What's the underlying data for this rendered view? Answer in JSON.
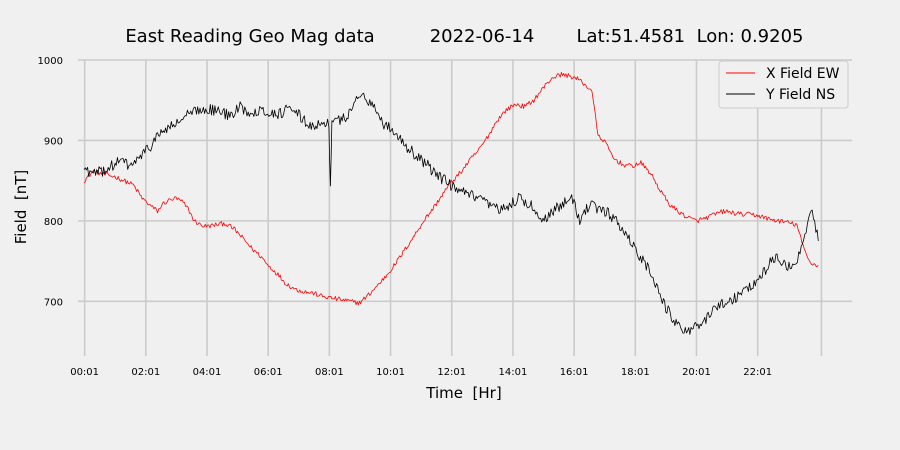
{
  "chart_data": {
    "type": "line",
    "title_parts": [
      "East Reading Geo Mag data",
      "2022-06-14",
      "Lat:51.4581  Lon: 0.9205"
    ],
    "xlabel": "Time  [Hr]",
    "ylabel": "Field  [nT]",
    "x_unit": "hours",
    "xlim": [
      -0.2,
      25.1
    ],
    "ylim": [
      632,
      1000
    ],
    "x_ticks": [
      {
        "x": 0.0167,
        "label": "00:01"
      },
      {
        "x": 2.0167,
        "label": "02:01"
      },
      {
        "x": 4.0167,
        "label": "04:01"
      },
      {
        "x": 6.0167,
        "label": "06:01"
      },
      {
        "x": 8.0167,
        "label": "08:01"
      },
      {
        "x": 10.0167,
        "label": "10:01"
      },
      {
        "x": 12.0167,
        "label": "12:01"
      },
      {
        "x": 14.0167,
        "label": "14:01"
      },
      {
        "x": 16.0167,
        "label": "16:01"
      },
      {
        "x": 18.0167,
        "label": "18:01"
      },
      {
        "x": 20.0167,
        "label": "20:01"
      },
      {
        "x": 22.0167,
        "label": "22:01"
      }
    ],
    "x_extra_gridline": 24.1,
    "y_ticks": [
      700,
      800,
      900,
      1000
    ],
    "grid": true,
    "legend_position": "top-right",
    "series": [
      {
        "name": "X Field EW",
        "color": "#ff0000",
        "noise": 3,
        "x": [
          0,
          0.3,
          0.6,
          1.0,
          1.3,
          1.6,
          1.9,
          2.2,
          2.4,
          2.6,
          2.8,
          3.0,
          3.2,
          3.4,
          3.6,
          3.8,
          4.0,
          4.3,
          4.6,
          4.9,
          5.2,
          5.5,
          5.8,
          6.0,
          6.3,
          6.6,
          6.9,
          7.2,
          7.5,
          7.8,
          8.1,
          8.4,
          8.7,
          9.0,
          9.3,
          9.6,
          9.9,
          10.2,
          10.5,
          10.8,
          11.1,
          11.4,
          11.7,
          12.0,
          12.3,
          12.6,
          12.9,
          13.2,
          13.5,
          13.8,
          14.1,
          14.4,
          14.7,
          15.0,
          15.3,
          15.6,
          15.9,
          16.2,
          16.4,
          16.6,
          16.8,
          17.0,
          17.3,
          17.6,
          17.9,
          18.2,
          18.5,
          18.8,
          19.1,
          19.4,
          19.7,
          20.0,
          20.3,
          20.6,
          20.9,
          21.2,
          21.5,
          21.8,
          22.1,
          22.4,
          22.7,
          23.0,
          23.3,
          23.5,
          23.7,
          23.9,
          24.0
        ],
        "y": [
          850,
          862,
          858,
          855,
          850,
          845,
          828,
          818,
          812,
          822,
          826,
          828,
          824,
          815,
          800,
          795,
          793,
          795,
          797,
          790,
          778,
          765,
          755,
          745,
          735,
          722,
          715,
          712,
          710,
          706,
          704,
          702,
          700,
          698,
          708,
          720,
          733,
          748,
          765,
          782,
          800,
          815,
          832,
          848,
          860,
          875,
          888,
          905,
          925,
          938,
          945,
          942,
          950,
          965,
          978,
          982,
          980,
          975,
          968,
          962,
          905,
          900,
          878,
          870,
          868,
          872,
          860,
          840,
          822,
          812,
          805,
          800,
          803,
          808,
          812,
          810,
          808,
          808,
          806,
          802,
          800,
          798,
          795,
          768,
          750,
          745,
          745
        ]
      },
      {
        "name": "Y Field NS",
        "color": "#000000",
        "noise": 7,
        "x": [
          0,
          0.3,
          0.6,
          0.9,
          1.2,
          1.5,
          1.8,
          2.1,
          2.4,
          2.7,
          3.0,
          3.3,
          3.6,
          3.9,
          4.2,
          4.5,
          4.8,
          5.1,
          5.4,
          5.7,
          6.0,
          6.3,
          6.6,
          6.9,
          7.2,
          7.5,
          7.8,
          8.0,
          8.05,
          8.1,
          8.4,
          8.7,
          8.9,
          9.1,
          9.3,
          9.6,
          9.8,
          10.0,
          10.3,
          10.6,
          10.9,
          11.2,
          11.5,
          11.8,
          12.1,
          12.4,
          12.7,
          13.0,
          13.3,
          13.6,
          13.9,
          14.2,
          14.5,
          14.8,
          15.0,
          15.3,
          15.6,
          15.9,
          16.2,
          16.5,
          16.8,
          17.1,
          17.4,
          17.7,
          18.0,
          18.3,
          18.6,
          18.9,
          19.2,
          19.5,
          19.8,
          20.1,
          20.4,
          20.7,
          21.0,
          21.3,
          21.6,
          21.9,
          22.2,
          22.5,
          22.8,
          23.0,
          23.2,
          23.4,
          23.6,
          23.8,
          24.0
        ],
        "y": [
          865,
          858,
          862,
          868,
          875,
          868,
          878,
          890,
          905,
          915,
          920,
          930,
          935,
          940,
          938,
          935,
          930,
          942,
          935,
          938,
          935,
          932,
          938,
          935,
          925,
          915,
          925,
          920,
          840,
          922,
          925,
          935,
          950,
          960,
          950,
          935,
          920,
          915,
          905,
          890,
          880,
          870,
          858,
          850,
          840,
          835,
          830,
          825,
          818,
          812,
          820,
          828,
          822,
          812,
          800,
          812,
          820,
          835,
          800,
          820,
          815,
          810,
          800,
          785,
          765,
          750,
          730,
          700,
          680,
          668,
          665,
          668,
          680,
          695,
          700,
          705,
          715,
          720,
          735,
          755,
          750,
          745,
          740,
          760,
          790,
          810,
          775
        ]
      }
    ]
  }
}
